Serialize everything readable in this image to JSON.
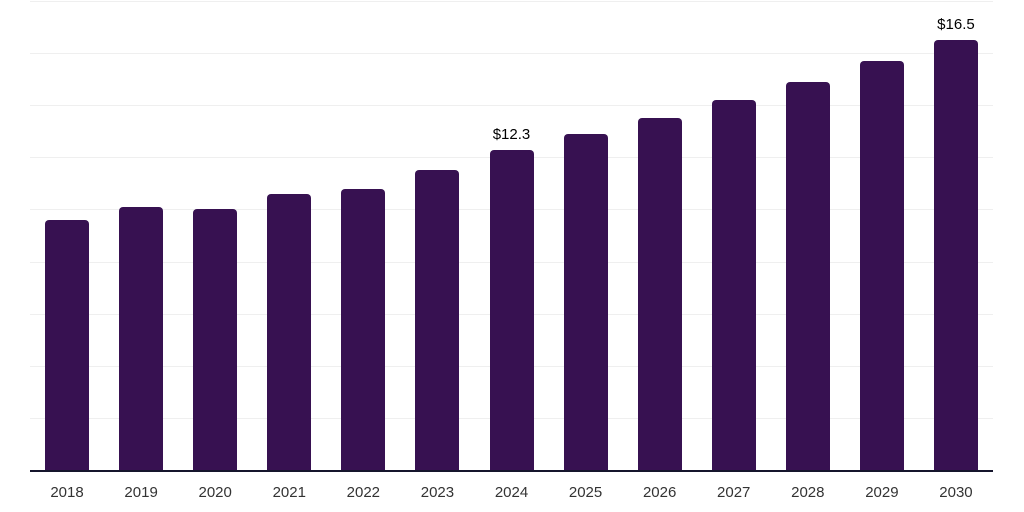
{
  "chart_data": {
    "type": "bar",
    "categories": [
      "2018",
      "2019",
      "2020",
      "2021",
      "2022",
      "2023",
      "2024",
      "2025",
      "2026",
      "2027",
      "2028",
      "2029",
      "2030"
    ],
    "values": [
      9.6,
      10.1,
      10.0,
      10.6,
      10.8,
      11.5,
      12.3,
      12.9,
      13.5,
      14.2,
      14.9,
      15.7,
      16.5
    ],
    "data_labels": [
      "",
      "",
      "",
      "",
      "",
      "",
      "$12.3",
      "",
      "",
      "",
      "",
      "",
      "$16.5"
    ],
    "title": "",
    "xlabel": "",
    "ylabel": "",
    "ylim": [
      0,
      18
    ],
    "gridline_step": 2,
    "grid": "horizontal-only",
    "legend_position": "none",
    "colors": {
      "bar": "#371151",
      "grid": "#efefef",
      "axis_line": "#15152c",
      "tick_label": "#333333",
      "data_label": "#000000",
      "background": "#ffffff"
    }
  }
}
